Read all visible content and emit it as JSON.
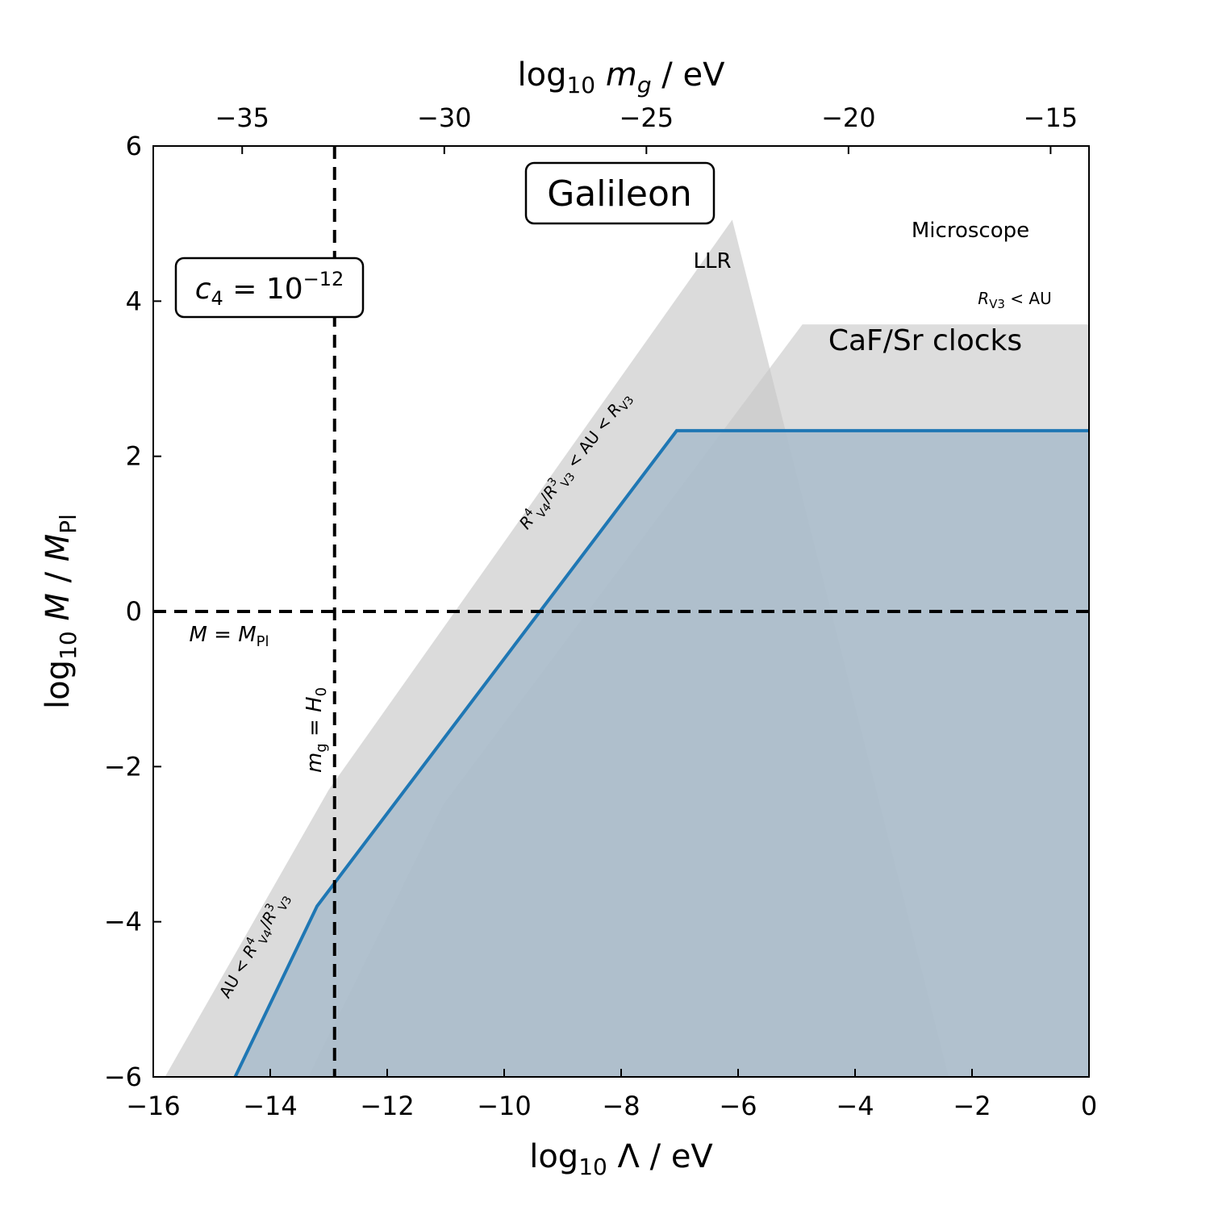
{
  "chart_data": {
    "type": "area",
    "title": "Galileon",
    "parameter_label": "c_4 = 10^-12",
    "xlabel": "log10 Λ / eV",
    "ylabel": "log10 M / M_Pl",
    "x2label": "log10 m_g / eV",
    "xlim": [
      -16,
      0
    ],
    "ylim": [
      -6,
      6
    ],
    "x2lim": [
      -37.2,
      -14.05
    ],
    "xticks": [
      -16,
      -14,
      -12,
      -10,
      -8,
      -6,
      -4,
      -2,
      0
    ],
    "yticks": [
      -6,
      -4,
      -2,
      0,
      2,
      4,
      6
    ],
    "x2ticks": [
      -35,
      -30,
      -25,
      -20,
      -15
    ],
    "grid": false,
    "regions": [
      {
        "name": "LLR",
        "color": "#d9d9d9",
        "polygon": [
          [
            -15.8,
            -6
          ],
          [
            -13.0,
            -2.3
          ],
          [
            -6.1,
            5.05
          ],
          [
            -2.4,
            -6
          ]
        ]
      },
      {
        "name": "CaF/Sr clocks",
        "color": "#c8c8c8",
        "polygon": [
          [
            -13.35,
            -6
          ],
          [
            -11.05,
            -2.5
          ],
          [
            -4.9,
            3.7
          ],
          [
            0,
            3.7
          ],
          [
            0,
            -6
          ]
        ]
      }
    ],
    "series": [
      {
        "name": "Microscope",
        "color": "#1f77b4",
        "fill": "#a9bccb",
        "x": [
          -14.6,
          -13.2,
          -7.05,
          0
        ],
        "y": [
          -6,
          -3.8,
          2.33,
          2.33
        ]
      }
    ],
    "reference_lines": [
      {
        "label": "M = M_Pl",
        "orientation": "horizontal",
        "y": 0
      },
      {
        "label": "m_g = H_0",
        "orientation": "vertical",
        "x": -12.9
      }
    ],
    "annotations": [
      {
        "text": "LLR",
        "x": -6.6,
        "y": 4.45
      },
      {
        "text": "Microscope",
        "x": -2.0,
        "y": 4.8
      },
      {
        "text": "R_V3 < AU",
        "x": -0.8,
        "y": 3.9
      },
      {
        "text": "CaF/Sr clocks",
        "x": -2.9,
        "y": 3.45
      },
      {
        "text": "R_V4^4/R_V3^3 < AU < R_V3",
        "x": -8.0,
        "y": 1.8
      },
      {
        "text": "AU < R_V4^4/R_V3^3",
        "x": -14.3,
        "y": -4.5
      },
      {
        "text": "M = M_Pl",
        "x": -14.9,
        "y": -0.35
      },
      {
        "text": "m_g = H_0",
        "x": -13.3,
        "y": -1.35
      }
    ]
  }
}
